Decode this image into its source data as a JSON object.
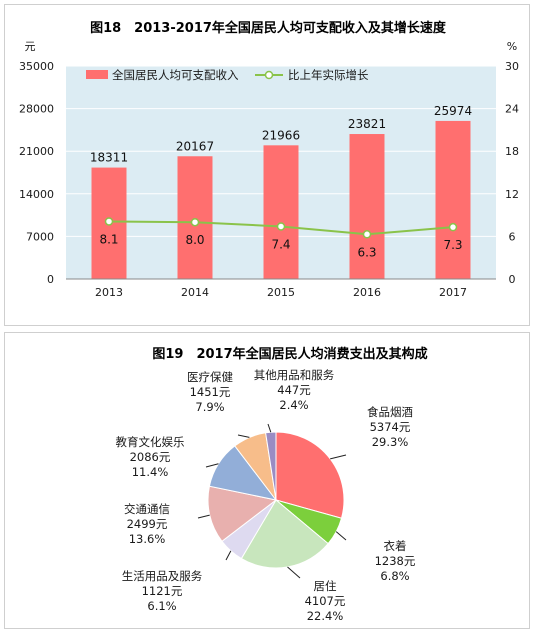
{
  "chart_data": [
    {
      "type": "bar",
      "title": "图18　2013-2017年全国居民人均可支配收入及其增长速度",
      "y_unit_left": "元",
      "y_unit_right": "%",
      "categories": [
        "2013",
        "2014",
        "2015",
        "2016",
        "2017"
      ],
      "ylim_left": [
        0,
        35000
      ],
      "yticks_left": [
        "0",
        "7000",
        "14000",
        "21000",
        "28000",
        "35000"
      ],
      "ylim_right": [
        0,
        30
      ],
      "yticks_right": [
        "0",
        "6",
        "12",
        "18",
        "24",
        "30"
      ],
      "grid": true,
      "legend_position": "top",
      "series": [
        {
          "name": "全国居民人均可支配收入",
          "kind": "bar",
          "axis": "left",
          "color": "#ff6f6f",
          "values": [
            18311,
            20167,
            21966,
            23821,
            25974
          ],
          "labels": [
            "18311",
            "20167",
            "21966",
            "23821",
            "25974"
          ]
        },
        {
          "name": "比上年实际增长",
          "kind": "line",
          "axis": "right",
          "color": "#8ac34a",
          "values": [
            8.1,
            8.0,
            7.4,
            6.3,
            7.3
          ],
          "labels": [
            "8.1",
            "8.0",
            "7.4",
            "6.3",
            "7.3"
          ]
        }
      ]
    },
    {
      "type": "pie",
      "title": "图19　2017年全国居民人均消费支出及其构成",
      "slices": [
        {
          "name": "食品烟酒",
          "value": 5374,
          "amount": "5374元",
          "percent": "29.3%",
          "color": "#ff6f6f"
        },
        {
          "name": "衣着",
          "value": 1238,
          "amount": "1238元",
          "percent": "6.8%",
          "color": "#7ccf3c"
        },
        {
          "name": "居住",
          "value": 4107,
          "amount": "4107元",
          "percent": "22.4%",
          "color": "#c8e6bd"
        },
        {
          "name": "生活用品及服务",
          "value": 1121,
          "amount": "1121元",
          "percent": "6.1%",
          "color": "#dedaf0"
        },
        {
          "name": "交通通信",
          "value": 2499,
          "amount": "2499元",
          "percent": "13.6%",
          "color": "#e8b0ae"
        },
        {
          "name": "教育文化娱乐",
          "value": 2086,
          "amount": "2086元",
          "percent": "11.4%",
          "color": "#92aed8"
        },
        {
          "name": "医疗保健",
          "value": 1451,
          "amount": "1451元",
          "percent": "7.9%",
          "color": "#f7bd8a"
        },
        {
          "name": "其他用品和服务",
          "value": 447,
          "amount": "447元",
          "percent": "2.4%",
          "color": "#9a8cc3"
        }
      ]
    }
  ]
}
